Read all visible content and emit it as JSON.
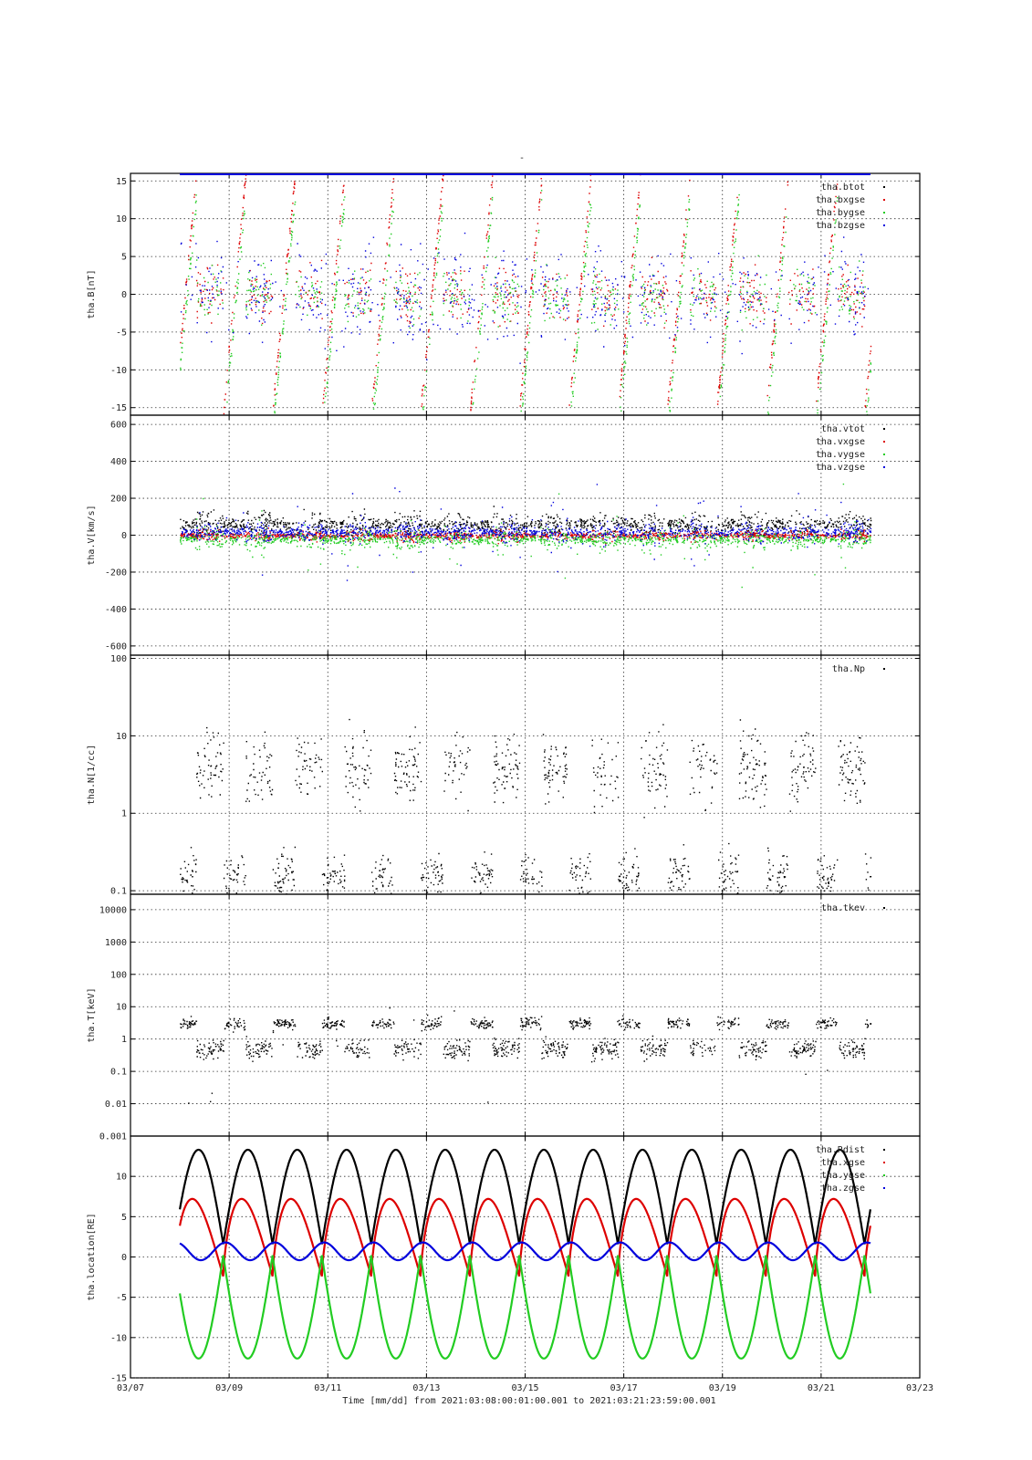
{
  "title": "-",
  "time_axis": {
    "ticks": [
      "03/07",
      "03/09",
      "03/11",
      "03/13",
      "03/15",
      "03/17",
      "03/19",
      "03/21",
      "03/23"
    ],
    "tick_days": [
      0,
      2,
      4,
      6,
      8,
      10,
      12,
      14,
      16
    ],
    "range_days": [
      0,
      16
    ],
    "caption": "Time [mm/dd]  from 2021:03:08:00:01:00.001  to  2021:03:21:23:59:00.001",
    "data_start_day": 1,
    "data_end_day": 15
  },
  "colors": {
    "black": "#000000",
    "red": "#dd0000",
    "green": "#22cc22",
    "blue": "#0000dd",
    "grid": "#333333",
    "frame": "#000000"
  },
  "chart_data": [
    {
      "type": "scatter",
      "id": "B",
      "ylabel": "tha.B[nT]",
      "ylim": [
        -16,
        16
      ],
      "log": false,
      "yticks": [
        15,
        10,
        5,
        0,
        -5,
        -10,
        -15
      ],
      "ytick_labels": [
        "15",
        "10",
        "5",
        "0",
        "-5",
        "-10",
        "-15"
      ],
      "grid": true,
      "legend_position": "top-right",
      "series": [
        {
          "name": "tha.btot",
          "color": "#000000"
        },
        {
          "name": "tha.bxgse",
          "color": "#dd0000"
        },
        {
          "name": "tha.bygse",
          "color": "#22cc22"
        },
        {
          "name": "tha.bzgse",
          "color": "#0000dd"
        }
      ]
    },
    {
      "type": "scatter",
      "id": "V",
      "ylabel": "tha.V[km/s]",
      "ylim": [
        -650,
        650
      ],
      "log": false,
      "yticks": [
        600,
        400,
        200,
        0,
        -200,
        -400,
        -600
      ],
      "ytick_labels": [
        "600",
        "400",
        "200",
        "0",
        "-200",
        "-400",
        "-600"
      ],
      "grid": true,
      "legend_position": "top-right",
      "series": [
        {
          "name": "tha.vtot",
          "color": "#000000"
        },
        {
          "name": "tha.vxgse",
          "color": "#dd0000"
        },
        {
          "name": "tha.vygse",
          "color": "#22cc22"
        },
        {
          "name": "tha.vzgse",
          "color": "#0000dd"
        }
      ]
    },
    {
      "type": "scatter",
      "id": "N",
      "ylabel": "tha.N[1/cc]",
      "ylim": [
        0.09,
        110
      ],
      "log": true,
      "yticks": [
        100,
        10,
        1,
        0.1
      ],
      "ytick_labels": [
        "100",
        "10",
        "1",
        "0.1"
      ],
      "grid": true,
      "legend_position": "top-right",
      "series": [
        {
          "name": "tha.Np",
          "color": "#000000"
        }
      ]
    },
    {
      "type": "scatter",
      "id": "T",
      "ylabel": "tha.T[keV]",
      "ylim": [
        0.001,
        30000
      ],
      "log": true,
      "yticks": [
        10000,
        1000,
        100,
        10,
        1,
        0.1,
        0.01,
        0.001
      ],
      "ytick_labels": [
        "10000",
        "1000",
        "100",
        "10",
        "1",
        "0.1",
        "0.01",
        "0.001"
      ],
      "grid": true,
      "legend_position": "top-right",
      "series": [
        {
          "name": "tha.tkev",
          "color": "#000000"
        }
      ]
    },
    {
      "type": "line",
      "id": "L",
      "ylabel": "tha.location[RE]",
      "ylim": [
        -15,
        15
      ],
      "log": false,
      "yticks": [
        10,
        5,
        0,
        -5,
        -10,
        -15
      ],
      "ytick_labels": [
        "10",
        "5",
        "0",
        "-5",
        "-10",
        "-15"
      ],
      "grid": true,
      "legend_position": "top-right",
      "series": [
        {
          "name": "tha.Rdist",
          "color": "#000000"
        },
        {
          "name": "tha.xgse",
          "color": "#dd0000"
        },
        {
          "name": "tha.ygse",
          "color": "#22cc22"
        },
        {
          "name": "tha.zgse",
          "color": "#0000dd"
        }
      ],
      "orbit": {
        "first_perigee_day": 1.88,
        "period_days": 1.0,
        "apogee_rdist": 13.3,
        "perigee_rdist": 1.6,
        "x_range": [
          -2.4,
          7.2
        ],
        "y_range": [
          -12.6,
          0.2
        ],
        "z_range": [
          -0.4,
          1.8
        ]
      }
    }
  ]
}
